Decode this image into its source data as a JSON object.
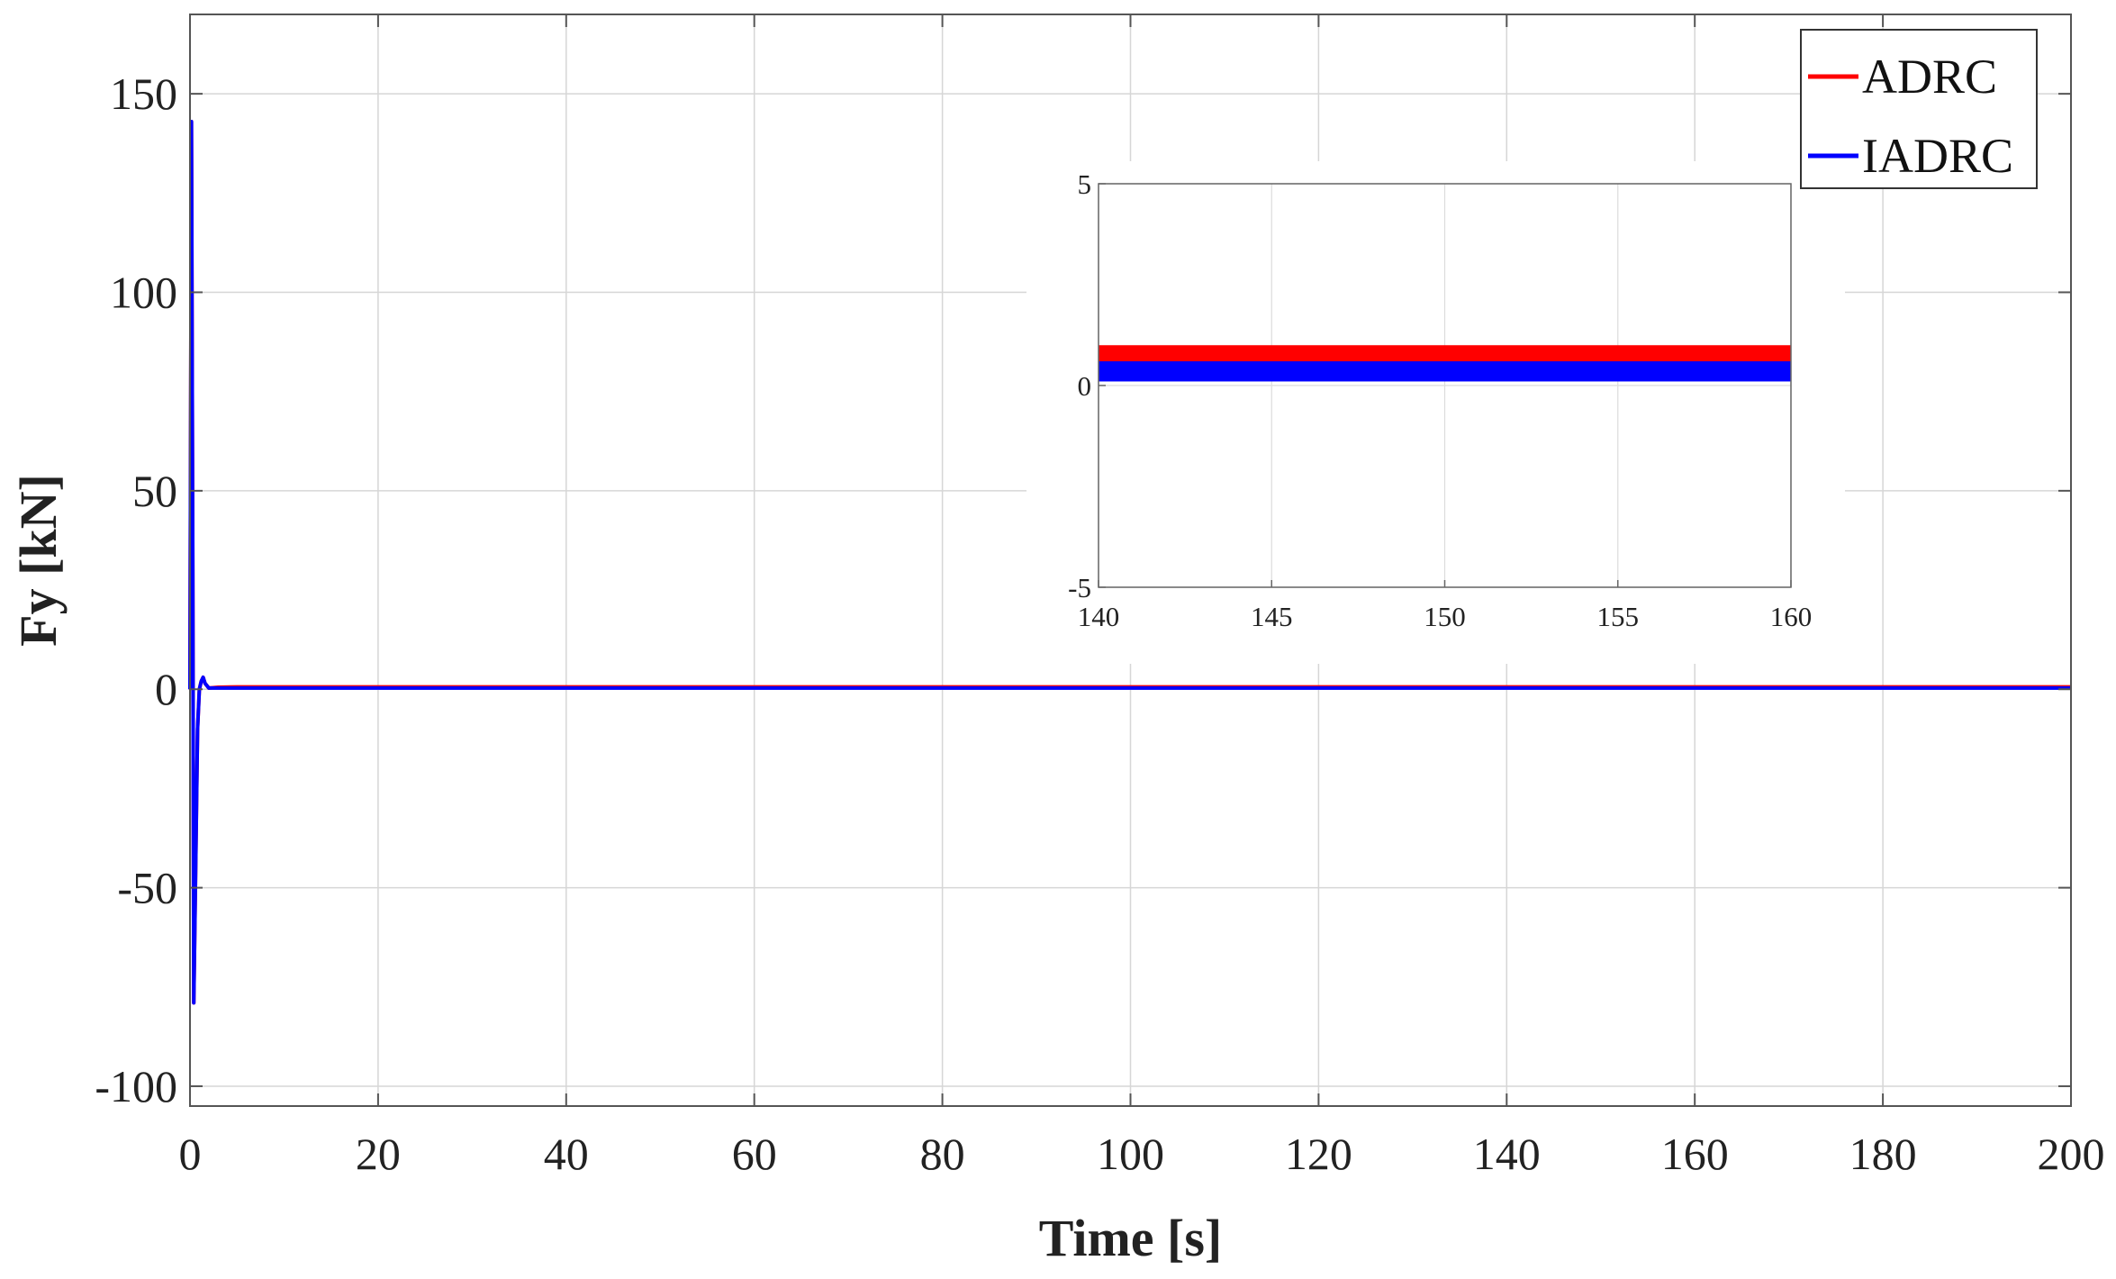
{
  "chart_data": [
    {
      "type": "line",
      "title": "",
      "xlabel": "Time [s]",
      "ylabel": "Fy [kN]",
      "xlim": [
        0,
        200
      ],
      "ylim": [
        -105,
        170
      ],
      "xticks": [
        0,
        20,
        40,
        60,
        80,
        100,
        120,
        140,
        160,
        180,
        200
      ],
      "yticks": [
        -100,
        -50,
        0,
        50,
        100,
        150
      ],
      "ytick_labels": [
        "-100",
        "-50",
        "0",
        "50",
        "100",
        "150"
      ],
      "grid": true,
      "legend": {
        "position": "top-right",
        "entries": [
          "ADRC",
          "IADRC"
        ]
      },
      "series": [
        {
          "name": "ADRC",
          "color": "#ff0000",
          "x": [
            0,
            0.15,
            0.3,
            0.4,
            0.6,
            0.8,
            1.0,
            1.2,
            1.4,
            1.6,
            2.0,
            3,
            5,
            10,
            50,
            100,
            150,
            200
          ],
          "y": [
            0,
            143,
            30,
            -79,
            -45,
            -10,
            0,
            2,
            3,
            1.5,
            0.3,
            0.5,
            0.6,
            0.6,
            0.6,
            0.6,
            0.6,
            0.6
          ]
        },
        {
          "name": "IADRC",
          "color": "#0000ff",
          "x": [
            0,
            0.15,
            0.3,
            0.4,
            0.6,
            0.8,
            1.0,
            1.2,
            1.4,
            1.6,
            2.0,
            3,
            5,
            10,
            50,
            100,
            150,
            200
          ],
          "y": [
            0,
            143,
            30,
            -79,
            -45,
            -10,
            0,
            2,
            3,
            1.5,
            0.3,
            0.3,
            0.3,
            0.3,
            0.3,
            0.3,
            0.3,
            0.3
          ]
        }
      ]
    },
    {
      "type": "area",
      "title": "",
      "xlabel": "",
      "ylabel": "",
      "xlim": [
        140,
        160
      ],
      "ylim": [
        -5,
        5
      ],
      "xticks": [
        140,
        145,
        150,
        155,
        160
      ],
      "yticks": [
        -5,
        0,
        5
      ],
      "ytick_labels": [
        "-5",
        "0",
        "5"
      ],
      "grid": true,
      "series": [
        {
          "name": "ADRC",
          "color": "#ff0000",
          "x": [
            140,
            160
          ],
          "upper": [
            1.0,
            1.0
          ],
          "lower": [
            0.5,
            0.5
          ]
        },
        {
          "name": "IADRC",
          "color": "#0000ff",
          "x": [
            140,
            160
          ],
          "upper": [
            0.6,
            0.6
          ],
          "lower": [
            0.1,
            0.1
          ]
        }
      ]
    }
  ]
}
